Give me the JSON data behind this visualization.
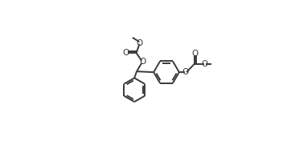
{
  "bg_color": "#ffffff",
  "line_color": "#3a3a3a",
  "line_width": 1.4,
  "figure_size": [
    3.67,
    1.86
  ],
  "dpi": 100,
  "xlim": [
    0,
    3.67
  ],
  "ylim": [
    0,
    1.86
  ]
}
